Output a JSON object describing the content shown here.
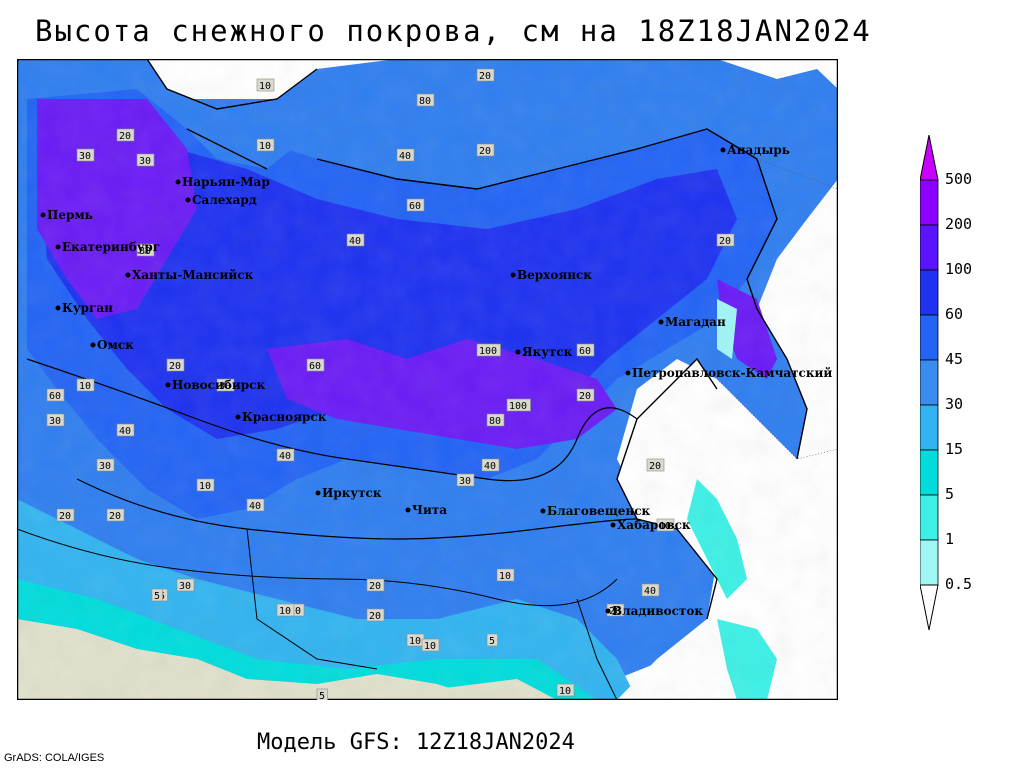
{
  "title": "Высота снежного покрова, см на 18Z18JAN2024",
  "subtitle": "Модель GFS: 12Z18JAN2024",
  "credit": "GrADS: COLA/IGES",
  "legend": {
    "levels": [
      "500",
      "200",
      "100",
      "60",
      "45",
      "30",
      "15",
      "5",
      "1",
      "0.5"
    ],
    "colors": [
      "#c800ff",
      "#8c00ff",
      "#5a14ff",
      "#1e32f0",
      "#2364f5",
      "#3c8cf0",
      "#32b4f0",
      "#00dcdc",
      "#3cf0e6",
      "#a0f5f5"
    ]
  },
  "cities": [
    {
      "name": "Нарьян-Мар"
    },
    {
      "name": "Салехард"
    },
    {
      "name": "Пермь"
    },
    {
      "name": "Екатеринбург"
    },
    {
      "name": "Ханты-Мансийск"
    },
    {
      "name": "Курган"
    },
    {
      "name": "Омск"
    },
    {
      "name": "Новосибирск"
    },
    {
      "name": "Красноярск"
    },
    {
      "name": "Иркутск"
    },
    {
      "name": "Чита"
    },
    {
      "name": "Благовещенск"
    },
    {
      "name": "Хабаровск"
    },
    {
      "name": "Владивосток"
    },
    {
      "name": "Верхоянск"
    },
    {
      "name": "Якутск"
    },
    {
      "name": "Магадан"
    },
    {
      "name": "Анадырь"
    },
    {
      "name": "Петропавловск-Камчатский"
    }
  ],
  "contour_labels": [
    "10",
    "20",
    "30",
    "40",
    "60",
    "80",
    "100",
    "10",
    "20",
    "30",
    "40",
    "60",
    "80",
    "20",
    "30",
    "40",
    "10",
    "20",
    "30",
    "5",
    "10",
    "20",
    "40",
    "80",
    "100",
    "60",
    "20",
    "10",
    "5",
    "10",
    "20",
    "30",
    "40",
    "20",
    "10",
    "5",
    "40",
    "20",
    "10",
    "60",
    "20",
    "30",
    "40",
    "20",
    "10",
    "5",
    "10",
    "30",
    "20",
    "10"
  ]
}
